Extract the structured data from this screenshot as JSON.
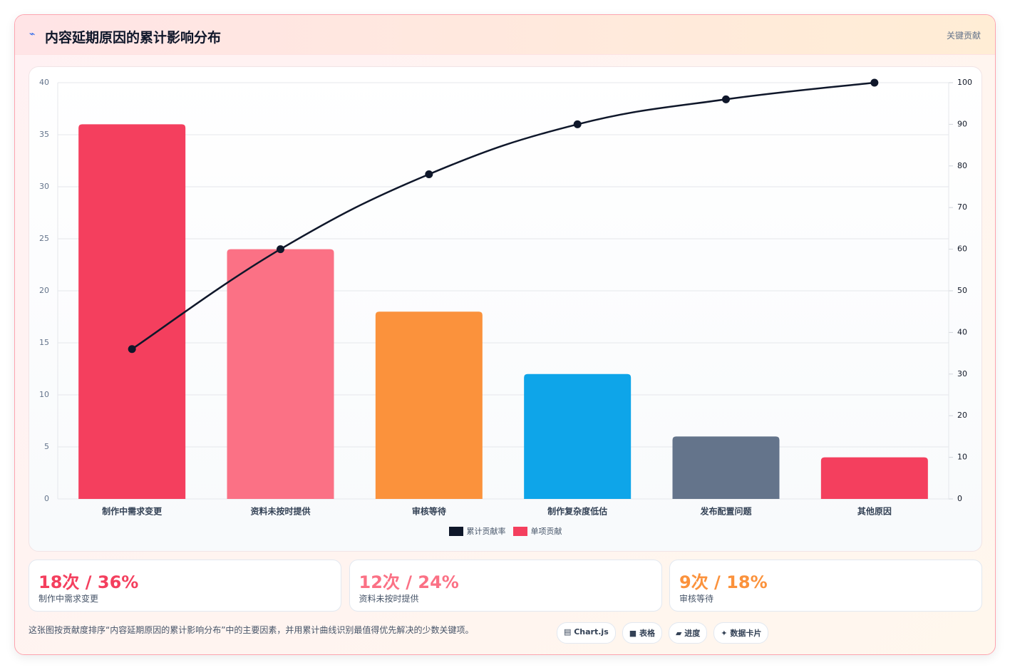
{
  "header": {
    "title": "内容延期原因的累计影响分布",
    "tag": "关键贡献"
  },
  "chart_data": {
    "type": "bar",
    "categories": [
      "制作中需求变更",
      "资料未按时提供",
      "审核等待",
      "制作复杂度低估",
      "发布配置问题",
      "其他原因"
    ],
    "series": [
      {
        "name": "累计贡献率",
        "type": "line",
        "axis": "y2",
        "color": "#0f172a",
        "values": [
          36,
          60,
          78,
          90,
          96,
          100
        ]
      },
      {
        "name": "单项贡献",
        "type": "bar",
        "color": "#f43f5e",
        "colors": [
          "#f43f5e",
          "#fb7185",
          "#fb923c",
          "#0ea5e9",
          "#64748b",
          "#f43f5e"
        ],
        "values": [
          36,
          24,
          18,
          12,
          6,
          4
        ]
      }
    ],
    "ylim": [
      0,
      40
    ],
    "yticks": [
      0,
      5,
      10,
      15,
      20,
      25,
      30,
      35,
      40
    ],
    "y2lim": [
      0,
      100
    ],
    "y2ticks": [
      0,
      10,
      20,
      30,
      40,
      50,
      60,
      70,
      80,
      90,
      100
    ],
    "grid": true
  },
  "cards": [
    {
      "value": "18次 / 36%",
      "label": "制作中需求变更",
      "color": "#f43f5e"
    },
    {
      "value": "12次 / 24%",
      "label": "资料未按时提供",
      "color": "#fb7185"
    },
    {
      "value": "9次 / 18%",
      "label": "审核等待",
      "color": "#fb923c"
    }
  ],
  "footer": {
    "text": "这张图按贡献度排序“内容延期原因的累计影响分布”中的主要因素，并用累计曲线识别最值得优先解决的少数关键项。",
    "chips": [
      "Chart.js",
      "表格",
      "进度",
      "数据卡片"
    ]
  }
}
